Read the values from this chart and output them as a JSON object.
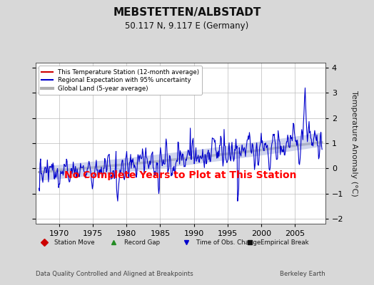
{
  "title": "MEBSTETTEN/ALBSTADT",
  "subtitle": "50.117 N, 9.117 E (Germany)",
  "ylabel": "Temperature Anomaly (°C)",
  "ylim": [
    -2.2,
    4.2
  ],
  "yticks": [
    -2,
    -1,
    0,
    1,
    2,
    3,
    4
  ],
  "xlim": [
    1966.5,
    2009.5
  ],
  "xticks": [
    1970,
    1975,
    1980,
    1985,
    1990,
    1995,
    2000,
    2005
  ],
  "footer_left": "Data Quality Controlled and Aligned at Breakpoints",
  "footer_right": "Berkeley Earth",
  "annotation": "No Complete Years to Plot at This Station",
  "annotation_color": "#ff0000",
  "bg_color": "#d8d8d8",
  "plot_bg_color": "#ffffff",
  "grid_color": "#bbbbbb",
  "regional_band_color": "#aab4dd",
  "regional_line_color": "#0000cc",
  "station_line_color": "#cc0000",
  "global_line_color": "#b0b0b0",
  "legend_items": [
    {
      "label": "This Temperature Station (12-month average)",
      "color": "#cc0000",
      "lw": 1.5
    },
    {
      "label": "Regional Expectation with 95% uncertainty",
      "color": "#0000cc",
      "lw": 1.5
    },
    {
      "label": "Global Land (5-year average)",
      "color": "#b0b0b0",
      "lw": 3
    }
  ],
  "bottom_legend": [
    {
      "label": "Station Move",
      "color": "#cc0000",
      "marker": "D"
    },
    {
      "label": "Record Gap",
      "color": "#228B22",
      "marker": "^"
    },
    {
      "label": "Time of Obs. Change",
      "color": "#0000cc",
      "marker": "v"
    },
    {
      "label": "Empirical Break",
      "color": "#111111",
      "marker": "s"
    }
  ]
}
